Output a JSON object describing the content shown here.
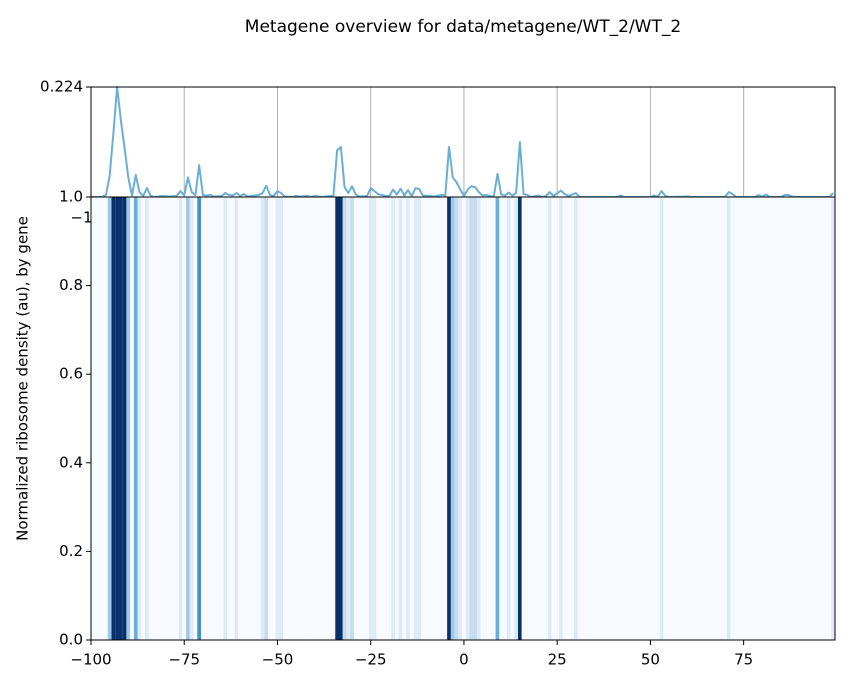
{
  "chart_data": [
    {
      "type": "line",
      "title": "Metagene overview for data/metagene/WT_2/WT_2",
      "x": [
        -100,
        -97,
        -96,
        -95,
        -94,
        -93,
        -92,
        -91,
        -90,
        -89,
        -88,
        -87,
        -86,
        -85,
        -84,
        -83,
        -81,
        -79,
        -77,
        -76,
        -75,
        -74,
        -73,
        -72,
        -71,
        -70,
        -69,
        -68,
        -67,
        -65,
        -64,
        -63,
        -62,
        -61,
        -60,
        -59,
        -58,
        -55,
        -54,
        -53,
        -52,
        -51,
        -50,
        -49,
        -48,
        -46,
        -45,
        -44,
        -42,
        -41,
        -40,
        -38,
        -36,
        -35,
        -34,
        -33,
        -32,
        -31,
        -30,
        -29,
        -28,
        -26,
        -25,
        -24,
        -23,
        -21,
        -20,
        -19,
        -18,
        -17,
        -16,
        -15,
        -14,
        -13,
        -12,
        -11,
        -9,
        -8,
        -6,
        -5,
        -4,
        -3,
        -2,
        -1,
        0,
        1,
        2,
        3,
        4,
        5,
        6,
        7,
        8,
        9,
        10,
        11,
        12,
        13,
        14,
        15,
        16,
        17,
        18,
        20,
        21,
        22,
        23,
        24,
        26,
        27,
        28,
        30,
        31,
        35,
        40,
        41,
        42,
        43,
        50,
        51,
        52,
        53,
        54,
        55,
        60,
        61,
        70,
        71,
        72,
        73,
        78,
        79,
        80,
        81,
        82,
        85,
        86,
        87,
        88,
        89,
        95,
        98,
        99
      ],
      "values": [
        0,
        0,
        0.004,
        0.043,
        0.13,
        0.224,
        0.157,
        0.1,
        0.04,
        0.003,
        0.045,
        0.01,
        0.002,
        0.018,
        0.003,
        0,
        0.002,
        0.001,
        0.002,
        0.012,
        0.003,
        0.04,
        0.01,
        0.004,
        0.065,
        0.004,
        0.003,
        0.004,
        0.001,
        0.002,
        0.008,
        0.004,
        0.003,
        0.008,
        0.002,
        0.006,
        0.001,
        0.004,
        0.008,
        0.023,
        0.004,
        0.002,
        0.012,
        0.008,
        0.001,
        0,
        0.002,
        0.001,
        0.002,
        0,
        0.002,
        0,
        0.002,
        0.002,
        0.095,
        0.102,
        0.02,
        0.008,
        0.022,
        0.005,
        0.001,
        0.002,
        0.018,
        0.012,
        0.006,
        0.002,
        0.002,
        0.015,
        0.005,
        0.017,
        0.003,
        0.014,
        0.002,
        0.018,
        0.016,
        0.003,
        0.002,
        0.001,
        0.004,
        0.003,
        0.102,
        0.04,
        0.03,
        0.016,
        0.002,
        0.015,
        0.022,
        0.02,
        0.01,
        0.003,
        0.004,
        0.002,
        0.001,
        0.047,
        0.005,
        0.003,
        0.009,
        0.003,
        0.008,
        0.112,
        0.006,
        0.004,
        0,
        0.003,
        0,
        0.002,
        0.01,
        0.002,
        0.013,
        0.006,
        0.002,
        0.008,
        0,
        0,
        0,
        0,
        0.003,
        0,
        0,
        0.003,
        0.001,
        0.012,
        0.002,
        0,
        0.001,
        0,
        0,
        0.01,
        0.006,
        0,
        0,
        0.004,
        0.001,
        0.005,
        0,
        0,
        0.004,
        0.004,
        0.001,
        0,
        0,
        0,
        0.008
      ],
      "color": "#6baed6",
      "xlim": [
        -100,
        99.5
      ],
      "xticks": [
        {
          "value": -100,
          "label": "−100"
        },
        {
          "value": -75,
          "label": "−75"
        },
        {
          "value": -50,
          "label": "−50"
        },
        {
          "value": -25,
          "label": "−25"
        },
        0,
        25,
        50,
        75
      ],
      "ylim": [
        0,
        0.224
      ],
      "yticks": [
        0.224
      ],
      "grid": true
    },
    {
      "type": "heatmap",
      "ylabel": "Normalized ribosome density (au), by gene",
      "xlim": [
        -100,
        99.5
      ],
      "xticks": [
        {
          "value": -100,
          "label": "−100"
        },
        {
          "value": -75,
          "label": "−75"
        },
        {
          "value": -50,
          "label": "−50"
        },
        {
          "value": -25,
          "label": "−25"
        },
        0,
        25,
        50,
        75
      ],
      "ylim": [
        0,
        1
      ],
      "yticks": [
        {
          "value": 0,
          "label": "0.0"
        },
        0.2,
        0.4,
        0.6,
        0.8,
        {
          "value": 1,
          "label": "1.0"
        }
      ],
      "colormap": [
        "#f7fbff",
        "#deebf7",
        "#c6dbef",
        "#9ecae1",
        "#6baed6",
        "#4292c6",
        "#2171b5",
        "#08519c",
        "#08306b"
      ]
    }
  ]
}
